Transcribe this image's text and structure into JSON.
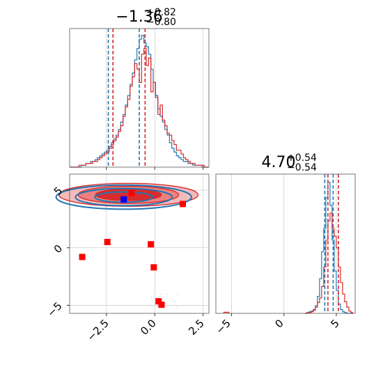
{
  "chart_data": [
    {
      "type": "histogram",
      "panel": "top-left",
      "title": {
        "main": "−1.36",
        "sup": "+0.82",
        "sub": "−0.80"
      },
      "xlim": [
        -4.4,
        2.8
      ],
      "grid": true,
      "series": [
        {
          "color": "#1f77b4",
          "bin_start": -4.4,
          "bin_width": 0.12,
          "counts": [
            0,
            0,
            0,
            0,
            0,
            1,
            1,
            2,
            2,
            3,
            3,
            4,
            5,
            6,
            7,
            8,
            9,
            11,
            13,
            15,
            17,
            20,
            24,
            28,
            33,
            38,
            44,
            50,
            57,
            63,
            68,
            70,
            66,
            64,
            60,
            52,
            45,
            38,
            31,
            27,
            24,
            20,
            17,
            13,
            10,
            8,
            6,
            5,
            4,
            3,
            3,
            2,
            2,
            1,
            1,
            1,
            1,
            0,
            0,
            0
          ],
          "quantile_lines": [
            -2.4,
            -0.8
          ]
        },
        {
          "color": "#d62728",
          "bin_start": -4.4,
          "bin_width": 0.12,
          "counts": [
            0,
            0,
            0,
            0,
            1,
            1,
            1,
            2,
            2,
            2,
            3,
            3,
            4,
            5,
            6,
            7,
            8,
            10,
            12,
            14,
            16,
            19,
            22,
            27,
            32,
            36,
            43,
            48,
            55,
            52,
            45,
            60,
            63,
            54,
            58,
            40,
            45,
            37,
            28,
            33,
            25,
            22,
            18,
            17,
            14,
            12,
            9,
            9,
            7,
            5,
            4,
            3,
            2,
            2,
            1,
            1,
            1,
            1,
            0,
            0
          ],
          "quantile_lines": [
            -2.16,
            -0.5
          ]
        }
      ]
    },
    {
      "type": "contour",
      "panel": "bottom-left",
      "xlim": [
        -4.4,
        2.8
      ],
      "ylim": [
        -5.7,
        6.4
      ],
      "grid": true,
      "xticks": [
        "−2.5",
        "0.0",
        "2.5"
      ],
      "yticks": [
        "5",
        "0",
        "−5"
      ],
      "red_markers": [
        {
          "x": -3.75,
          "y": -0.8
        },
        {
          "x": -2.45,
          "y": 0.5
        },
        {
          "x": -1.2,
          "y": 4.75
        },
        {
          "x": -0.2,
          "y": 0.3
        },
        {
          "x": -0.05,
          "y": -1.7
        },
        {
          "x": 0.2,
          "y": -4.65
        },
        {
          "x": 0.35,
          "y": -4.95
        },
        {
          "x": 1.45,
          "y": 3.8
        }
      ],
      "blue_markers": [
        {
          "x": -1.6,
          "y": 4.2
        }
      ],
      "red_contour_center": {
        "x": -1.36,
        "y": 4.6
      },
      "blue_contour_center": {
        "x": -1.6,
        "y": 4.4
      }
    },
    {
      "type": "histogram",
      "panel": "bottom-right",
      "title": {
        "main": "4.70",
        "sup": "+0.54",
        "sub": "−0.54"
      },
      "xlim": [
        -6.5,
        6.8
      ],
      "grid": true,
      "xticks": [
        "−5",
        "0",
        "5"
      ],
      "series": [
        {
          "color": "#1f77b4",
          "bin_start": 2.0,
          "bin_width": 0.2,
          "counts": [
            0,
            1,
            2,
            3,
            5,
            10,
            22,
            45,
            80,
            110,
            150,
            170,
            140,
            95,
            55,
            30,
            12,
            5,
            2,
            1,
            0,
            0,
            0
          ],
          "quantile_lines": [
            3.9,
            4.7
          ]
        },
        {
          "color": "#d62728",
          "bin_start": 2.0,
          "bin_width": 0.2,
          "counts": [
            0,
            1,
            1,
            2,
            4,
            8,
            14,
            20,
            35,
            60,
            95,
            120,
            130,
            110,
            100,
            85,
            60,
            40,
            25,
            15,
            8,
            3,
            1
          ],
          "quantile_lines": [
            4.2,
            5.2
          ]
        }
      ],
      "outlier_bin": {
        "x": -5.5,
        "count": 1
      }
    }
  ]
}
